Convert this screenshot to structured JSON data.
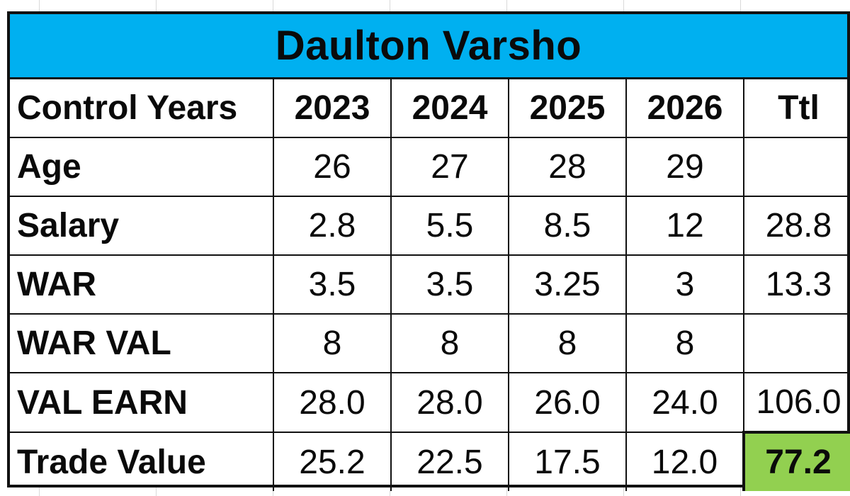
{
  "colors": {
    "title_background": "#00B0F0",
    "grand_total_background": "#92D050",
    "border": "#111111"
  },
  "title": "Daulton Varsho",
  "header": {
    "label": "Control Years",
    "years": [
      "2023",
      "2024",
      "2025",
      "2026"
    ],
    "total": "Ttl"
  },
  "rows": [
    {
      "label": "Age",
      "values": [
        "26",
        "27",
        "28",
        "29"
      ],
      "total": ""
    },
    {
      "label": "Salary",
      "values": [
        "2.8",
        "5.5",
        "8.5",
        "12"
      ],
      "total": "28.8"
    },
    {
      "label": "WAR",
      "values": [
        "3.5",
        "3.5",
        "3.25",
        "3"
      ],
      "total": "13.3"
    },
    {
      "label": "WAR VAL",
      "values": [
        "8",
        "8",
        "8",
        "8"
      ],
      "total": ""
    },
    {
      "label": "VAL EARN",
      "values": [
        "28.0",
        "28.0",
        "26.0",
        "24.0"
      ],
      "total": "106.0"
    },
    {
      "label": "Trade Value",
      "values": [
        "25.2",
        "22.5",
        "17.5",
        "12.0"
      ],
      "total": "77.2"
    }
  ]
}
